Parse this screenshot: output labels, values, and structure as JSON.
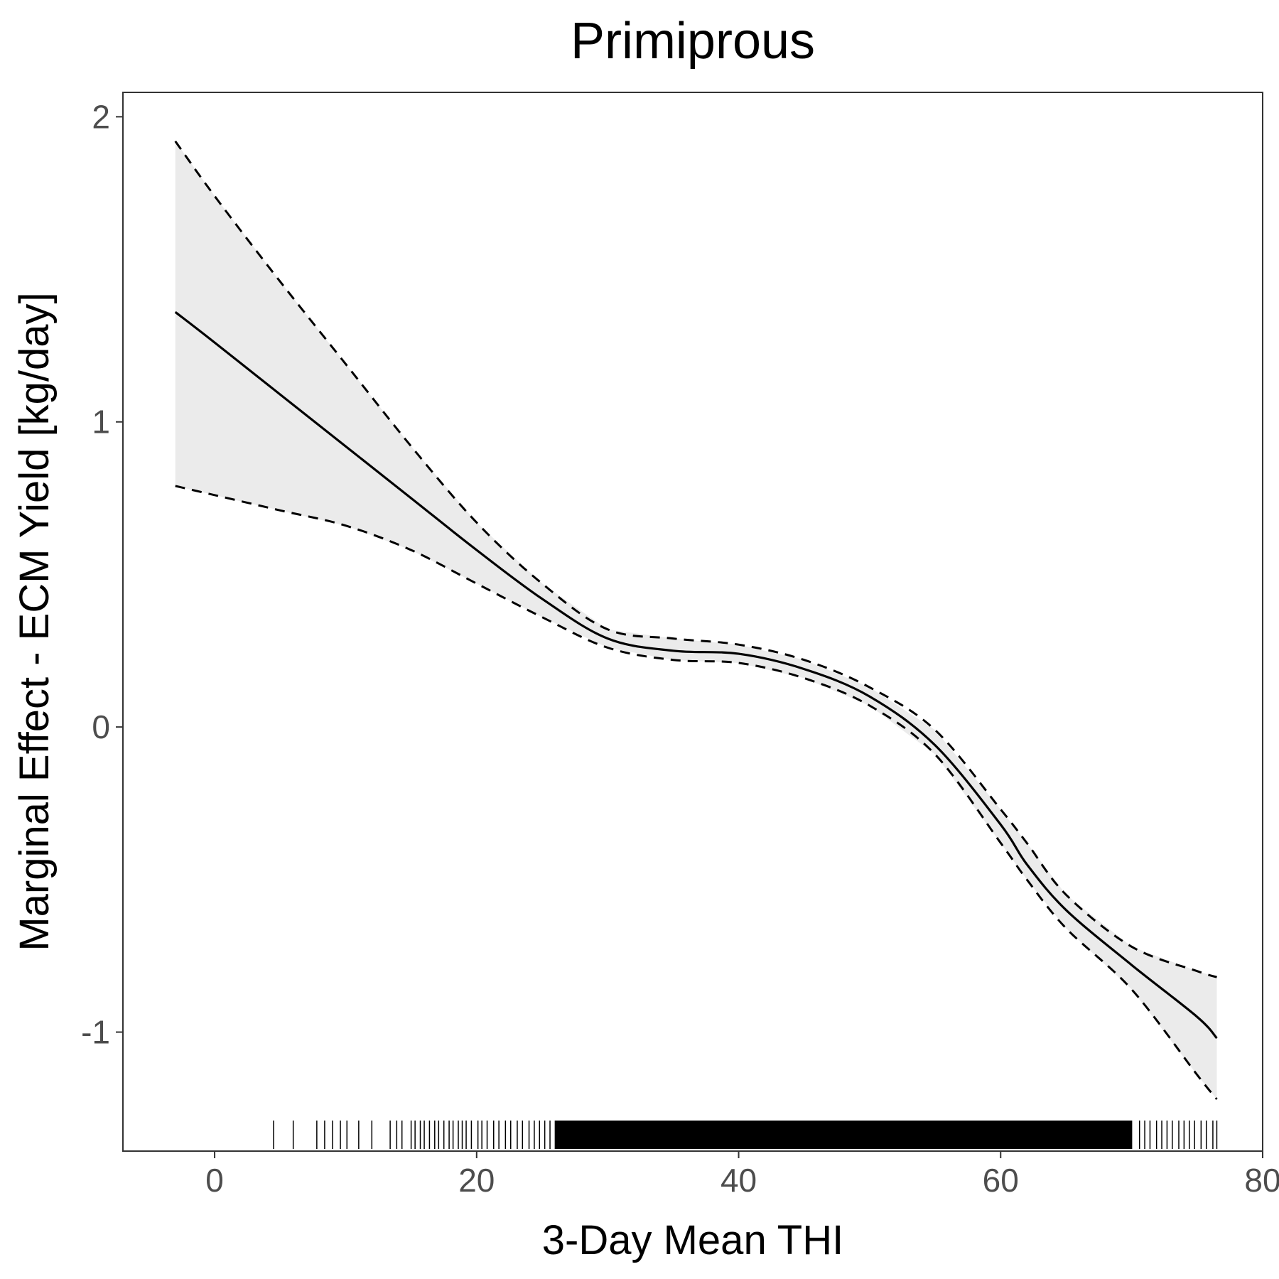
{
  "chart_data": {
    "type": "line",
    "title": "Primiprous",
    "xlabel": "3-Day Mean THI",
    "ylabel": "Marginal Effect - ECM Yield [kg/day]",
    "xlim": [
      -7,
      80
    ],
    "ylim": [
      -1.39,
      2.08
    ],
    "x_ticks": [
      0,
      20,
      40,
      60,
      80
    ],
    "y_ticks": [
      -1,
      0,
      1,
      2
    ],
    "x_tick_labels": [
      "0",
      "20",
      "40",
      "60",
      "80"
    ],
    "y_tick_labels": [
      "-1",
      "0",
      "1",
      "2"
    ],
    "grid": false,
    "legend": "none",
    "x": [
      -3,
      0,
      5,
      10,
      15,
      20,
      25,
      30,
      35,
      40,
      45,
      50,
      55,
      60,
      62,
      65,
      70,
      75,
      76.5
    ],
    "estimate": [
      1.36,
      1.26,
      1.09,
      0.92,
      0.75,
      0.58,
      0.42,
      0.29,
      0.25,
      0.24,
      0.19,
      0.1,
      -0.06,
      -0.32,
      -0.45,
      -0.6,
      -0.78,
      -0.95,
      -1.02
    ],
    "upper": [
      1.92,
      1.74,
      1.46,
      1.19,
      0.92,
      0.67,
      0.47,
      0.32,
      0.29,
      0.27,
      0.22,
      0.13,
      -0.01,
      -0.27,
      -0.38,
      -0.55,
      -0.72,
      -0.8,
      -0.82
    ],
    "lower": [
      0.79,
      0.76,
      0.71,
      0.66,
      0.58,
      0.47,
      0.36,
      0.26,
      0.22,
      0.21,
      0.16,
      0.07,
      -0.09,
      -0.38,
      -0.5,
      -0.66,
      -0.86,
      -1.14,
      -1.22
    ],
    "rug_x": [
      4.5,
      6.0,
      7.8,
      8.4,
      9.0,
      9.6,
      10.1,
      11.0,
      12.0,
      13.4,
      13.9,
      14.3,
      15.0,
      15.3,
      15.7,
      16.0,
      16.4,
      16.8,
      17.1,
      17.5,
      17.9,
      18.2,
      18.6,
      18.9,
      19.2,
      19.6,
      20.1,
      20.4,
      20.8,
      21.3,
      21.7,
      22.2,
      22.6,
      23.1,
      23.5,
      24.0,
      24.4,
      24.8,
      25.2,
      25.6,
      26.0,
      30.0,
      35.0,
      40.0,
      45.0,
      50.0,
      55.0,
      60.0,
      65.0,
      70.0,
      70.6,
      71.0,
      71.4,
      71.9,
      72.3,
      72.7,
      73.1,
      73.6,
      74.0,
      74.4,
      74.8,
      75.3,
      75.7,
      76.2,
      76.5
    ],
    "rug_dense_range": [
      26,
      70
    ],
    "colors": {
      "band": "#ebebeb",
      "line": "#000000",
      "tick_text": "#4d4d4d",
      "frame": "#333333"
    }
  }
}
